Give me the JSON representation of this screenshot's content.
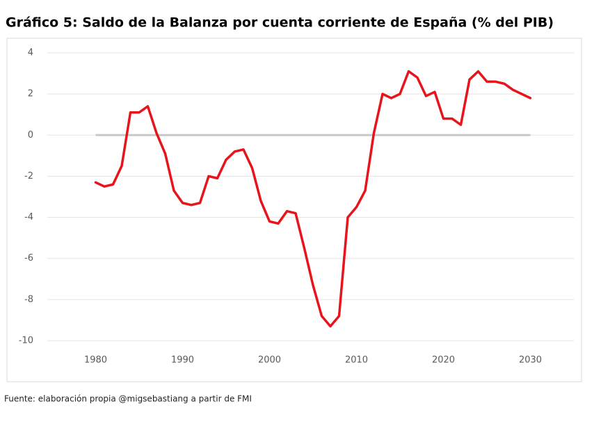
{
  "chart_data": {
    "type": "line",
    "title": "Gráfico 5: Saldo de la Balanza por cuenta corriente de España (% del PIB)",
    "source": "Fuente: elaboración propia @migsebastiang a partir de FMI",
    "x": [
      1980,
      1981,
      1982,
      1983,
      1984,
      1985,
      1986,
      1987,
      1988,
      1989,
      1990,
      1991,
      1992,
      1993,
      1994,
      1995,
      1996,
      1997,
      1998,
      1999,
      2000,
      2001,
      2002,
      2003,
      2004,
      2005,
      2006,
      2007,
      2008,
      2009,
      2010,
      2011,
      2012,
      2013,
      2014,
      2015,
      2016,
      2017,
      2018,
      2019,
      2020,
      2021,
      2022,
      2023,
      2024,
      2025,
      2026,
      2027,
      2028,
      2029,
      2030
    ],
    "values": [
      -2.3,
      -2.5,
      -2.4,
      -1.5,
      1.1,
      1.1,
      1.4,
      0.1,
      -0.9,
      -2.7,
      -3.3,
      -3.4,
      -3.3,
      -2.0,
      -2.1,
      -1.2,
      -0.8,
      -0.7,
      -1.6,
      -3.2,
      -4.2,
      -4.3,
      -3.7,
      -3.8,
      -5.5,
      -7.3,
      -8.8,
      -9.3,
      -8.8,
      -4.0,
      -3.5,
      -2.7,
      0.1,
      2.0,
      1.8,
      2.0,
      3.1,
      2.8,
      1.9,
      2.1,
      0.8,
      0.8,
      0.5,
      2.7,
      3.1,
      2.6,
      2.6,
      2.5,
      2.2,
      2.0,
      1.8
    ],
    "color": "#e8141c",
    "xlim": [
      1975,
      2035
    ],
    "xticks": [
      1980,
      1990,
      2000,
      2010,
      2020,
      2030
    ],
    "ylim": [
      -10,
      4
    ],
    "yticks": [
      -10,
      -8,
      -6,
      -4,
      -2,
      0,
      2,
      4
    ],
    "grid": true,
    "zero_line": true
  }
}
